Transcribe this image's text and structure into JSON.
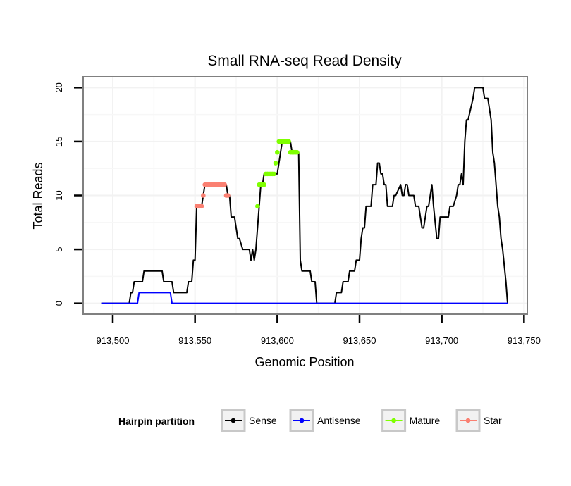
{
  "chart_data": {
    "type": "line",
    "title": "Small RNA-seq Read Density",
    "xlabel": "Genomic Position",
    "ylabel": "Total Reads",
    "xlim": [
      913482,
      913752
    ],
    "ylim": [
      -1,
      21
    ],
    "x_ticks": [
      913500,
      913550,
      913600,
      913650,
      913700,
      913750
    ],
    "x_tick_labels": [
      "913,500",
      "913,550",
      "913,600",
      "913,650",
      "913,700",
      "913,750"
    ],
    "y_ticks": [
      0,
      5,
      10,
      15,
      20
    ],
    "y_tick_labels": [
      "0",
      "5",
      "10",
      "15",
      "20"
    ],
    "grid": true,
    "legend": {
      "title": "Hairpin partition",
      "position": "bottom",
      "entries": [
        {
          "name": "Sense",
          "color": "#000000"
        },
        {
          "name": "Antisense",
          "color": "#0000ff"
        },
        {
          "name": "Mature",
          "color": "#7fff00"
        },
        {
          "name": "Star",
          "color": "#fa8072"
        }
      ]
    },
    "series": [
      {
        "name": "Sense",
        "color": "#000000",
        "x": [
          913493,
          913504,
          913510,
          913511,
          913512,
          913513,
          913514,
          913518,
          913519,
          913524,
          913529,
          913530,
          913531,
          913536,
          913537,
          913538,
          913545,
          913546,
          913548,
          913549,
          913550,
          913551,
          913554,
          913555,
          913556,
          913557,
          913558,
          913560,
          913565,
          913567,
          913569,
          913570,
          913571,
          913572,
          913574,
          913576,
          913577,
          913579,
          913583,
          913584,
          913585,
          913586,
          913587,
          913588,
          913589,
          913590,
          913591,
          913592,
          913594,
          913595,
          913600,
          913601,
          913602,
          913603,
          913606,
          913607,
          913608,
          913609,
          913611,
          913612,
          913613,
          913614,
          913615,
          913616,
          913619,
          913620,
          913621,
          913623,
          913624,
          913628,
          913635,
          913636,
          913639,
          913640,
          913643,
          913644,
          913647,
          913648,
          913650,
          913651,
          913652,
          913653,
          913654,
          913655,
          913657,
          913658,
          913659,
          913660,
          913661,
          913662,
          913663,
          913664,
          913665,
          913666,
          913667,
          913669,
          913670,
          913671,
          913672,
          913675,
          913676,
          913677,
          913678,
          913679,
          913680,
          913683,
          913684,
          913685,
          913686,
          913687,
          913688,
          913689,
          913690,
          913691,
          913692,
          913693,
          913694,
          913695,
          913697,
          913698,
          913699,
          913703,
          913704,
          913705,
          913706,
          913707,
          913709,
          913710,
          913711,
          913712,
          913713,
          913714,
          913715,
          913716,
          913719,
          913720,
          913721,
          913725,
          913726,
          913728,
          913730,
          913731,
          913732,
          913733,
          913734,
          913735,
          913736,
          913737,
          913739,
          913740
        ],
        "y": [
          0,
          0,
          0,
          1,
          1,
          2,
          2,
          2,
          3,
          3,
          3,
          3,
          2,
          2,
          1,
          1,
          1,
          2,
          2,
          4,
          4,
          9,
          9,
          10,
          11,
          11,
          11,
          11,
          11,
          11,
          11,
          10,
          10,
          8,
          8,
          6,
          6,
          5,
          5,
          4,
          5,
          4,
          5,
          7,
          9,
          11,
          11,
          12,
          12,
          12,
          12,
          13,
          14,
          15,
          15,
          15,
          15,
          14,
          14,
          14,
          14,
          4,
          3,
          3,
          3,
          3,
          2,
          2,
          0,
          0,
          0,
          1,
          1,
          2,
          2,
          3,
          3,
          4,
          4,
          6,
          7,
          7,
          9,
          9,
          9,
          11,
          11,
          11,
          13,
          13,
          12,
          12,
          11,
          11,
          9,
          9,
          9,
          10,
          10,
          11,
          10,
          10,
          11,
          11,
          10,
          10,
          9,
          9,
          9,
          8,
          7,
          7,
          8,
          9,
          9,
          10,
          11,
          9,
          6,
          6,
          8,
          8,
          8,
          9,
          9,
          9,
          10,
          11,
          11,
          12,
          11,
          15,
          17,
          17,
          19,
          20,
          20,
          20,
          19,
          19,
          17,
          14,
          13,
          11,
          9,
          8,
          6,
          5,
          2,
          0
        ]
      },
      {
        "name": "Antisense",
        "color": "#0000ff",
        "x": [
          913493,
          913515,
          913516,
          913535,
          913536,
          913740
        ],
        "y": [
          0,
          0,
          1,
          1,
          0,
          0
        ]
      },
      {
        "name": "Mature",
        "color": "#7fff00",
        "x": [
          913588,
          913589,
          913590,
          913591,
          913592,
          913593,
          913594,
          913595,
          913596,
          913597,
          913598,
          913599,
          913600,
          913601,
          913602,
          913603,
          913604,
          913605,
          913606,
          913607,
          913608,
          913609,
          913610,
          913611,
          913612
        ],
        "y": [
          9,
          11,
          11,
          11,
          11,
          12,
          12,
          12,
          12,
          12,
          12,
          13,
          14,
          15,
          15,
          15,
          15,
          15,
          15,
          15,
          14,
          14,
          14,
          14,
          14
        ]
      },
      {
        "name": "Star",
        "color": "#fa8072",
        "x": [
          913551,
          913552,
          913553,
          913554,
          913555,
          913556,
          913557,
          913558,
          913559,
          913560,
          913561,
          913562,
          913563,
          913564,
          913565,
          913566,
          913567,
          913568,
          913569,
          913570
        ],
        "y": [
          9,
          9,
          9,
          9,
          10,
          11,
          11,
          11,
          11,
          11,
          11,
          11,
          11,
          11,
          11,
          11,
          11,
          11,
          10,
          10
        ]
      }
    ]
  }
}
